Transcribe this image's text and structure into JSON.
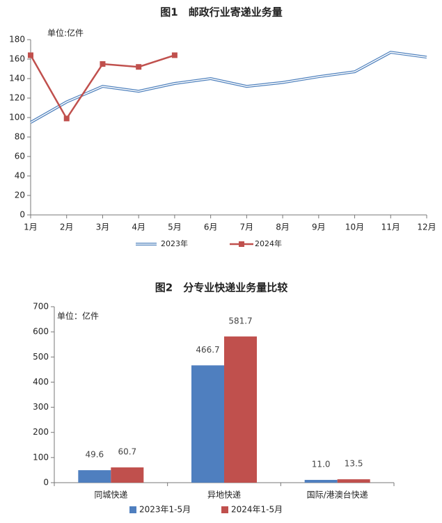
{
  "chart_data": [
    {
      "type": "line",
      "title": "图1　邮政行业寄递业务量",
      "annotation": "单位:亿件",
      "categories": [
        "1月",
        "2月",
        "3月",
        "4月",
        "5月",
        "6月",
        "7月",
        "8月",
        "9月",
        "10月",
        "11月",
        "12月"
      ],
      "series": [
        {
          "name": "2023年",
          "color": "#4f81bd",
          "values": [
            95,
            116,
            132,
            127,
            135,
            140,
            132,
            136,
            142,
            147,
            167,
            162
          ]
        },
        {
          "name": "2024年",
          "color": "#c0504d",
          "values": [
            164,
            99,
            155,
            152,
            164,
            null,
            null,
            null,
            null,
            null,
            null,
            null
          ]
        }
      ],
      "ylim": [
        0,
        180
      ],
      "yticks": [
        0,
        20,
        40,
        60,
        80,
        100,
        120,
        140,
        160,
        180
      ],
      "grid": false,
      "legend": "bottom"
    },
    {
      "type": "bar",
      "title": "图2　分专业快递业务量比较",
      "annotation": "单位：亿件",
      "categories": [
        "同城快递",
        "异地快递",
        "国际/港澳台快递"
      ],
      "series": [
        {
          "name": "2023年1-5月",
          "color": "#4f7fbf",
          "values": [
            49.6,
            466.7,
            11.0
          ],
          "value_labels": [
            "49.6",
            "466.7",
            "11.0"
          ]
        },
        {
          "name": "2024年1-5月",
          "color": "#c0504d",
          "values": [
            60.7,
            581.7,
            13.5
          ],
          "value_labels": [
            "60.7",
            "581.7",
            "13.5"
          ]
        }
      ],
      "ylim": [
        0,
        700
      ],
      "yticks": [
        0,
        100,
        200,
        300,
        400,
        500,
        600,
        700
      ],
      "grid": false,
      "legend": "bottom"
    }
  ]
}
